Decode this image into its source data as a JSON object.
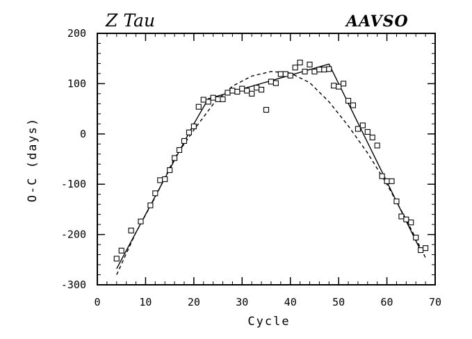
{
  "chart_data": {
    "type": "scatter",
    "title_left": "Z Tau",
    "title_right": "AAVSO",
    "xlabel": "Cycle",
    "ylabel": "O-C (days)",
    "xlim": [
      0,
      70
    ],
    "ylim": [
      -300,
      200
    ],
    "x_ticks": [
      0,
      10,
      20,
      30,
      40,
      50,
      60,
      70
    ],
    "x_tick_labels": [
      "0",
      "10",
      "20",
      "30",
      "40",
      "50",
      "60",
      "70"
    ],
    "y_ticks": [
      -300,
      -200,
      -100,
      0,
      100,
      200
    ],
    "y_tick_labels": [
      "-300",
      "-200",
      "-100",
      "0",
      "100",
      "200"
    ],
    "x_minor_step": 2,
    "y_minor_step": 20,
    "grid": false,
    "series": [
      {
        "name": "observations",
        "kind": "points",
        "marker": "square",
        "points": [
          [
            4,
            -248
          ],
          [
            5,
            -232
          ],
          [
            7,
            -192
          ],
          [
            9,
            -174
          ],
          [
            11,
            -142
          ],
          [
            12,
            -118
          ],
          [
            13,
            -92
          ],
          [
            14,
            -90
          ],
          [
            15,
            -72
          ],
          [
            16,
            -48
          ],
          [
            17,
            -32
          ],
          [
            18,
            -14
          ],
          [
            19,
            3
          ],
          [
            20,
            15
          ],
          [
            21,
            54
          ],
          [
            22,
            68
          ],
          [
            23,
            64
          ],
          [
            24,
            72
          ],
          [
            25,
            69
          ],
          [
            26,
            69
          ],
          [
            27,
            82
          ],
          [
            28,
            86
          ],
          [
            29,
            84
          ],
          [
            30,
            90
          ],
          [
            31,
            86
          ],
          [
            32,
            80
          ],
          [
            33,
            92
          ],
          [
            34,
            88
          ],
          [
            35,
            48
          ],
          [
            36,
            104
          ],
          [
            37,
            101
          ],
          [
            38,
            119
          ],
          [
            39,
            119
          ],
          [
            40,
            116
          ],
          [
            41,
            132
          ],
          [
            42,
            142
          ],
          [
            43,
            124
          ],
          [
            44,
            138
          ],
          [
            45,
            124
          ],
          [
            46,
            128
          ],
          [
            47,
            128
          ],
          [
            48,
            129
          ],
          [
            49,
            96
          ],
          [
            50,
            94
          ],
          [
            51,
            100
          ],
          [
            52,
            66
          ],
          [
            53,
            57
          ],
          [
            54,
            10
          ],
          [
            55,
            17
          ],
          [
            56,
            4
          ],
          [
            57,
            -7
          ],
          [
            58,
            -23
          ],
          [
            59,
            -84
          ],
          [
            60,
            -94
          ],
          [
            61,
            -94
          ],
          [
            62,
            -134
          ],
          [
            63,
            -164
          ],
          [
            64,
            -170
          ],
          [
            65,
            -176
          ],
          [
            66,
            -206
          ],
          [
            67,
            -231
          ],
          [
            68,
            -227
          ]
        ]
      },
      {
        "name": "piecewise linear fit",
        "kind": "line",
        "style": "solid",
        "points": [
          [
            4,
            -268
          ],
          [
            20,
            20
          ],
          [
            23,
            70
          ],
          [
            48,
            139
          ],
          [
            67,
            -232
          ]
        ]
      },
      {
        "name": "parabolic fit",
        "kind": "line",
        "style": "dashed",
        "points": [
          [
            4,
            -280
          ],
          [
            8,
            -196
          ],
          [
            12,
            -126
          ],
          [
            16,
            -48
          ],
          [
            20,
            8
          ],
          [
            24,
            59
          ],
          [
            28,
            95
          ],
          [
            32,
            115
          ],
          [
            36,
            124
          ],
          [
            40,
            121
          ],
          [
            44,
            102
          ],
          [
            48,
            64
          ],
          [
            52,
            16
          ],
          [
            56,
            -38
          ],
          [
            60,
            -100
          ],
          [
            64,
            -170
          ],
          [
            68,
            -246
          ]
        ]
      }
    ]
  }
}
